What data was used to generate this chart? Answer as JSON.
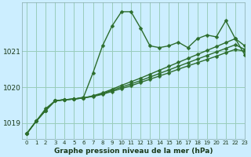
{
  "title": "Graphe pression niveau de la mer (hPa)",
  "background_color": "#cceeff",
  "grid_color": "#99ccbb",
  "line_color": "#2d6e2d",
  "xlim": [
    -0.5,
    23
  ],
  "ylim": [
    1018.55,
    1022.35
  ],
  "yticks": [
    1019,
    1020,
    1021
  ],
  "xticks": [
    0,
    1,
    2,
    3,
    4,
    5,
    6,
    7,
    8,
    9,
    10,
    11,
    12,
    13,
    14,
    15,
    16,
    17,
    18,
    19,
    20,
    21,
    22,
    23
  ],
  "series": [
    [
      1018.7,
      1019.05,
      1019.4,
      1019.62,
      1019.65,
      1019.67,
      1019.72,
      1020.4,
      1021.15,
      1021.7,
      1022.1,
      1022.1,
      1021.65,
      1021.15,
      1021.1,
      1021.15,
      1021.25,
      1021.1,
      1021.35,
      1021.45,
      1021.4,
      1021.85,
      1021.35,
      1020.9
    ],
    [
      1018.7,
      1019.05,
      1019.35,
      1019.62,
      1019.65,
      1019.67,
      1019.7,
      1019.74,
      1019.8,
      1019.88,
      1019.96,
      1020.04,
      1020.13,
      1020.22,
      1020.31,
      1020.4,
      1020.5,
      1020.59,
      1020.68,
      1020.77,
      1020.86,
      1020.96,
      1021.05,
      1021.0
    ],
    [
      1018.7,
      1019.05,
      1019.35,
      1019.62,
      1019.65,
      1019.67,
      1019.7,
      1019.75,
      1019.82,
      1019.91,
      1020.0,
      1020.09,
      1020.18,
      1020.28,
      1020.38,
      1020.48,
      1020.58,
      1020.68,
      1020.78,
      1020.88,
      1020.98,
      1021.08,
      1021.18,
      1021.05
    ],
    [
      1018.7,
      1019.05,
      1019.35,
      1019.62,
      1019.65,
      1019.67,
      1019.7,
      1019.76,
      1019.84,
      1019.94,
      1020.05,
      1020.15,
      1020.25,
      1020.36,
      1020.47,
      1020.58,
      1020.69,
      1020.8,
      1020.91,
      1021.02,
      1021.13,
      1021.24,
      1021.35,
      1021.15
    ]
  ],
  "linestyles": [
    "-",
    "-",
    "-",
    "-"
  ],
  "linewidths": [
    1.0,
    1.0,
    1.0,
    1.0
  ],
  "markersizes": [
    2.5,
    2.5,
    2.5,
    2.5
  ],
  "xlabel_fontsize": 6.5,
  "ylabel_fontsize": 6.5,
  "xtick_fontsize": 5.0,
  "ytick_fontsize": 6.5
}
